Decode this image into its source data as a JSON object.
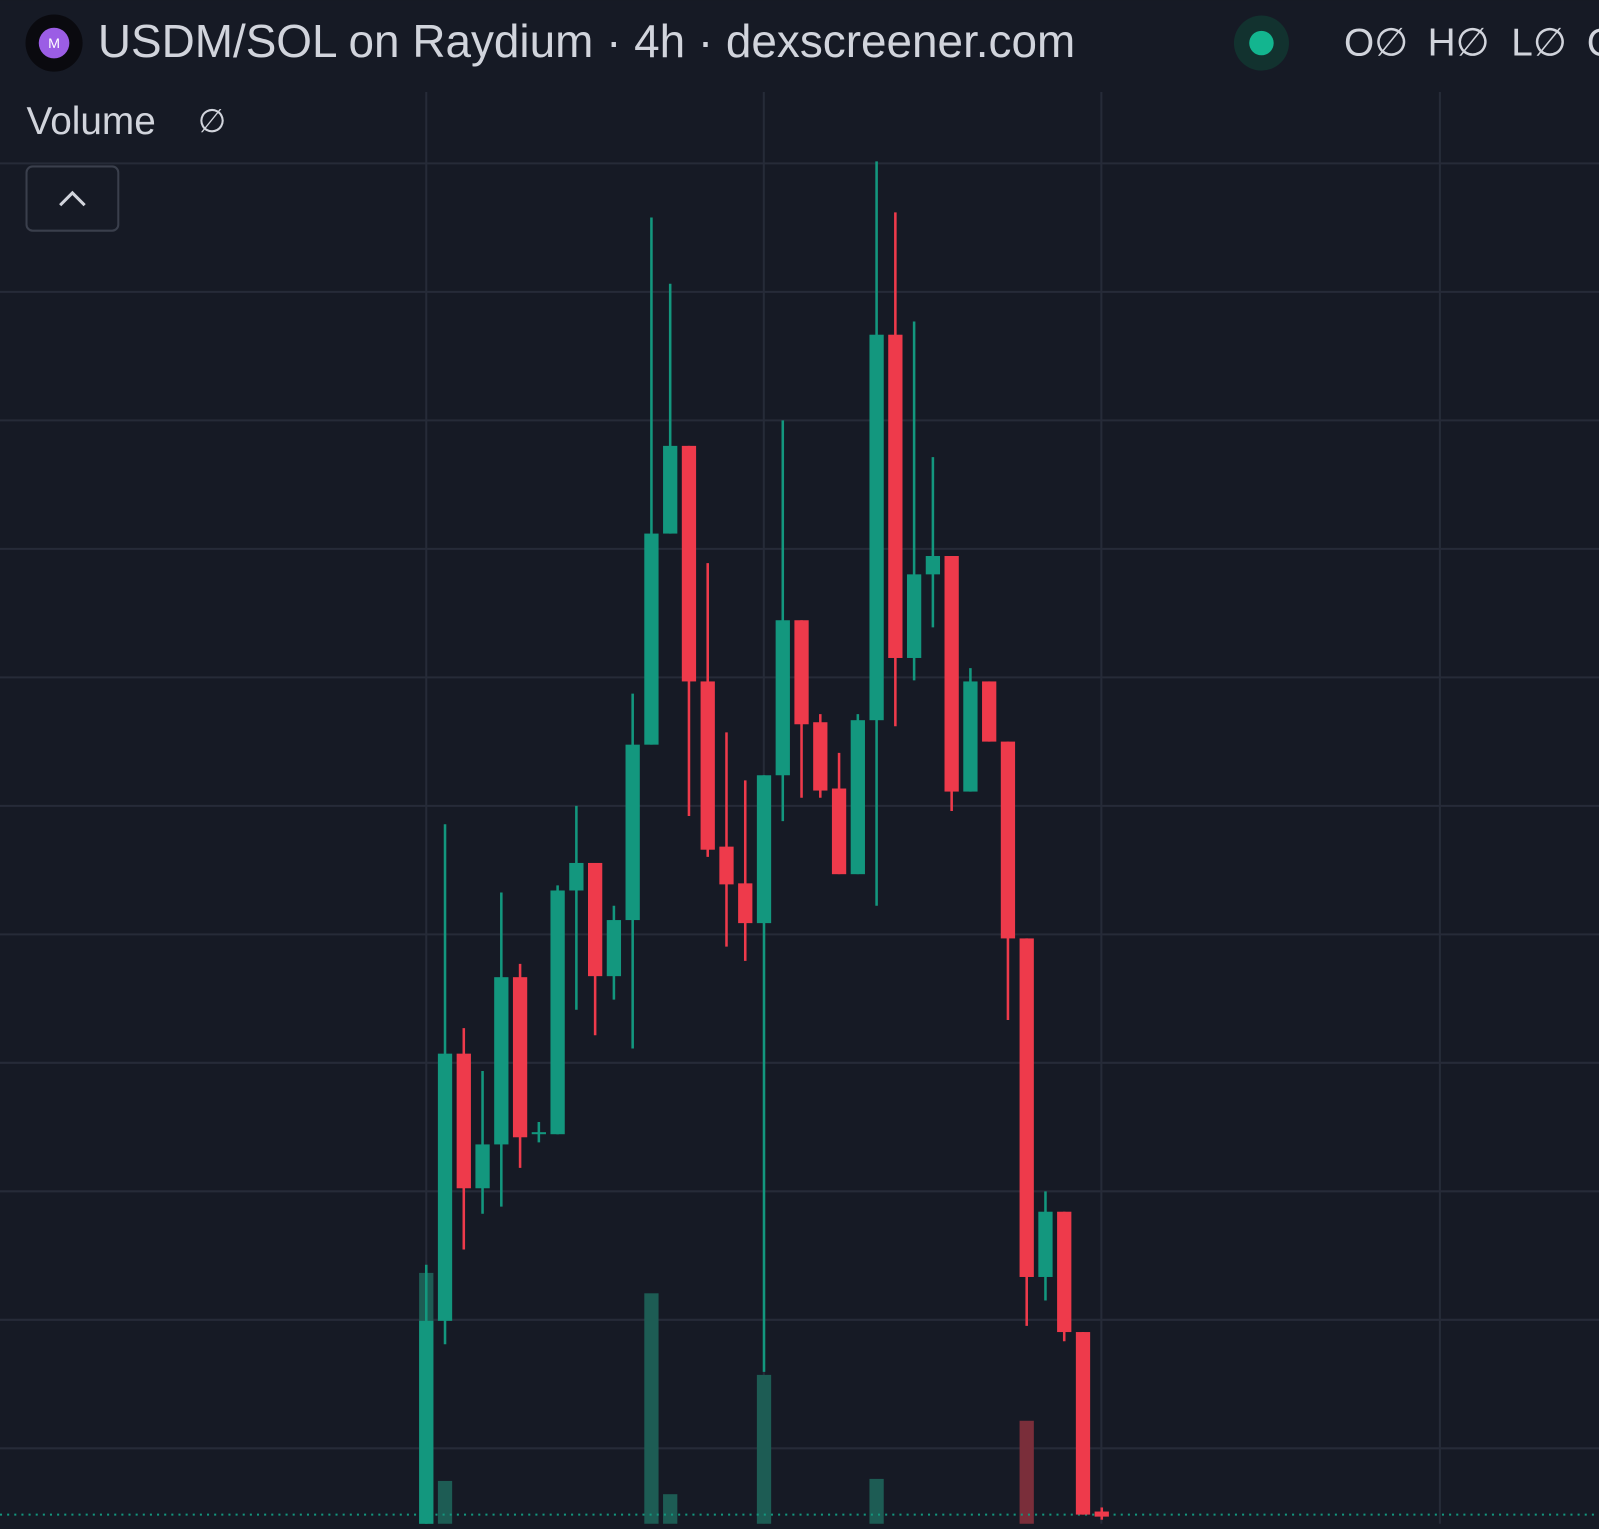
{
  "chart_data": {
    "type": "candlestick",
    "title": "USDM/SOL on Raydium · 4h · dexscreener.com",
    "logo_text": "M",
    "ohlc_labels": [
      "O∅",
      "H∅",
      "L∅",
      "C"
    ],
    "volume_label": "Volume",
    "volume_value": "∅",
    "up_color": "#13977e",
    "down_color": "#ee3a4b",
    "volume_up_color": "#1d5c54",
    "volume_down_color": "#7a2e3a",
    "ylim": [
      0,
      149.4
    ],
    "y2lim": [
      0,
      149.4
    ],
    "grid": true,
    "open": [
      0,
      19.9,
      46.1,
      32.9,
      37.2,
      53.6,
      38.2,
      38.2,
      62.1,
      64.8,
      53.7,
      59.2,
      76.4,
      97.1,
      105.7,
      82.6,
      66.4,
      62.8,
      58.9,
      73.4,
      88.6,
      78.6,
      72.1,
      63.7,
      78.8,
      116.6,
      84.9,
      93.1,
      94.9,
      71.8,
      82.6,
      76.7,
      57.4,
      24.2,
      30.6,
      18.8,
      1.2
    ],
    "high": [
      25.4,
      68.6,
      48.6,
      44.4,
      61.9,
      54.9,
      39.4,
      62.6,
      70.4,
      64.8,
      60.6,
      81.4,
      128.1,
      121.6,
      105.7,
      94.2,
      77.6,
      72.9,
      73.4,
      108.2,
      88.6,
      79.4,
      75.6,
      79.4,
      133.6,
      128.6,
      117.9,
      104.6,
      94.9,
      83.9,
      82.6,
      76.7,
      57.4,
      32.6,
      30.6,
      18.8,
      1.6
    ],
    "low": [
      0,
      17.6,
      26.9,
      30.4,
      31.1,
      34.9,
      37.4,
      38.2,
      50.4,
      47.9,
      51.4,
      46.6,
      76.4,
      97.1,
      69.4,
      65.4,
      56.6,
      55.2,
      14.9,
      68.9,
      71.2,
      71.2,
      63.7,
      63.7,
      60.6,
      78.2,
      82.7,
      87.9,
      69.9,
      71.8,
      76.7,
      49.4,
      19.4,
      21.9,
      17.9,
      0.9,
      0.4
    ],
    "close": [
      19.9,
      46.1,
      32.9,
      37.2,
      53.6,
      37.9,
      38.4,
      62.1,
      64.8,
      53.7,
      59.2,
      76.4,
      97.1,
      105.7,
      82.6,
      66.1,
      62.7,
      58.9,
      73.4,
      88.6,
      78.4,
      71.9,
      63.7,
      78.8,
      116.6,
      84.9,
      93.1,
      94.9,
      71.8,
      82.6,
      76.7,
      57.4,
      24.2,
      30.6,
      18.8,
      0.9,
      0.7
    ],
    "volume": [
      24.6,
      4.2,
      null,
      null,
      null,
      null,
      null,
      null,
      null,
      null,
      null,
      null,
      22.6,
      2.9,
      null,
      null,
      null,
      null,
      14.6,
      null,
      null,
      null,
      null,
      null,
      4.4,
      null,
      null,
      null,
      null,
      null,
      null,
      null,
      10.1,
      null,
      null,
      null,
      null
    ]
  }
}
